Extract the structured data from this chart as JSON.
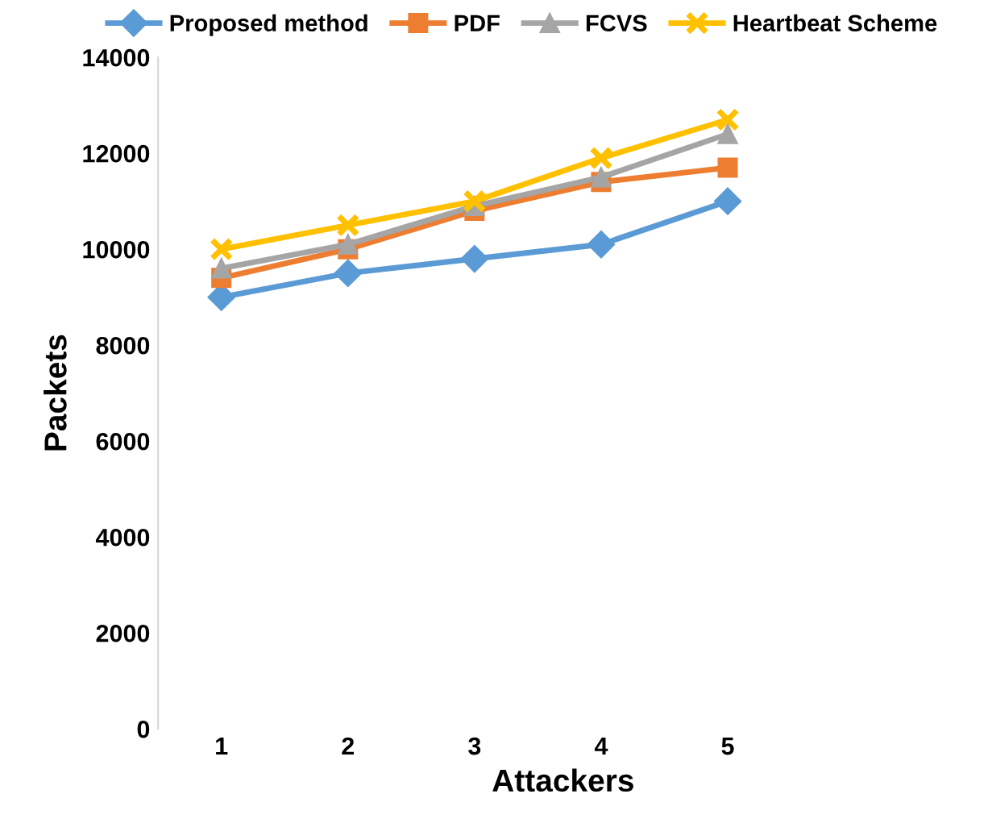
{
  "chart_data": {
    "type": "line",
    "xlabel": "Attackers",
    "ylabel": "Packets",
    "categories": [
      "1",
      "2",
      "3",
      "4",
      "5"
    ],
    "series": [
      {
        "name": "Proposed method",
        "color": "#5b9bd5",
        "marker": "diamond",
        "values": [
          9000,
          9500,
          9800,
          10100,
          11000
        ]
      },
      {
        "name": "PDF",
        "color": "#ed7d31",
        "marker": "square",
        "values": [
          9400,
          10000,
          10800,
          11400,
          11700
        ]
      },
      {
        "name": "FCVS",
        "color": "#a5a5a5",
        "marker": "triangle",
        "values": [
          9600,
          10100,
          10900,
          11500,
          12400
        ]
      },
      {
        "name": "Heartbeat Scheme",
        "color": "#ffc000",
        "marker": "cross",
        "values": [
          10000,
          10500,
          11000,
          11900,
          12700
        ]
      }
    ],
    "ylim": [
      0,
      14000
    ],
    "yticks": [
      0,
      2000,
      4000,
      6000,
      8000,
      10000,
      12000,
      14000
    ],
    "grid": false,
    "legend": "top",
    "line_style": "solid"
  }
}
